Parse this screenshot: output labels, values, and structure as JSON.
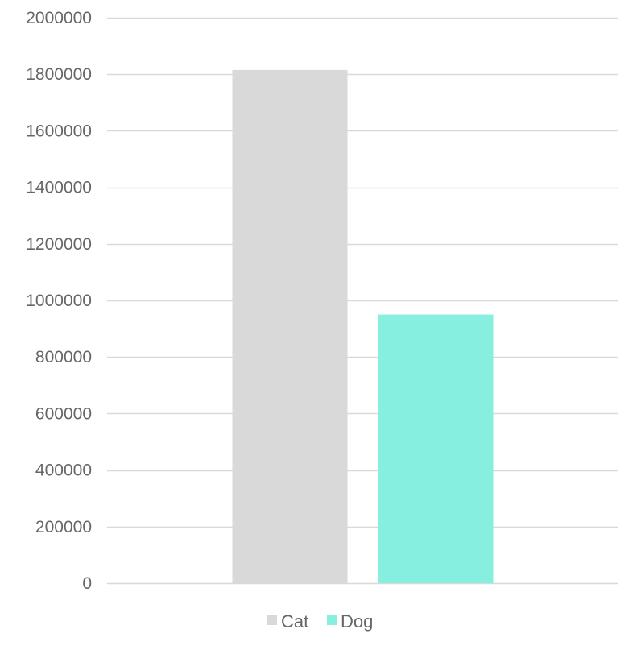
{
  "chart_data": {
    "type": "bar",
    "title": "",
    "xlabel": "",
    "ylabel": "",
    "ylim": [
      0,
      2000000
    ],
    "yticks": [
      0,
      200000,
      400000,
      600000,
      800000,
      1000000,
      1200000,
      1400000,
      1600000,
      1800000,
      2000000
    ],
    "ytick_labels": [
      "0",
      "200000",
      "400000",
      "600000",
      "800000",
      "1000000",
      "1200000",
      "1400000",
      "1600000",
      "1800000",
      "2000000"
    ],
    "grid": true,
    "legend_position": "bottom",
    "series": [
      {
        "name": "Cat",
        "values": [
          1815000
        ],
        "color": "#d9d9d9"
      },
      {
        "name": "Dog",
        "values": [
          950000
        ],
        "color": "#86efe0"
      }
    ]
  }
}
